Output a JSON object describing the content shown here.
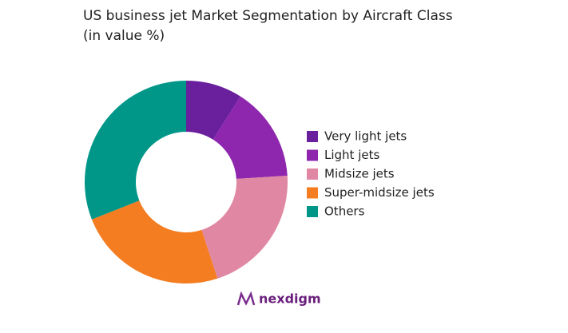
{
  "chart_data": {
    "type": "donut",
    "title": "US business jet Market Segmentation by Aircraft Class",
    "subtitle": "(in value %)",
    "categories": [
      "Very light jets",
      "Light jets",
      "Midsize jets",
      "Super-midsize jets",
      "Others"
    ],
    "values": [
      9,
      15,
      21,
      24,
      31
    ],
    "colors": [
      "#6a1f9c",
      "#8e27ad",
      "#e088a3",
      "#f47d22",
      "#009688"
    ],
    "legend": "right"
  },
  "logo": "nexdigm"
}
